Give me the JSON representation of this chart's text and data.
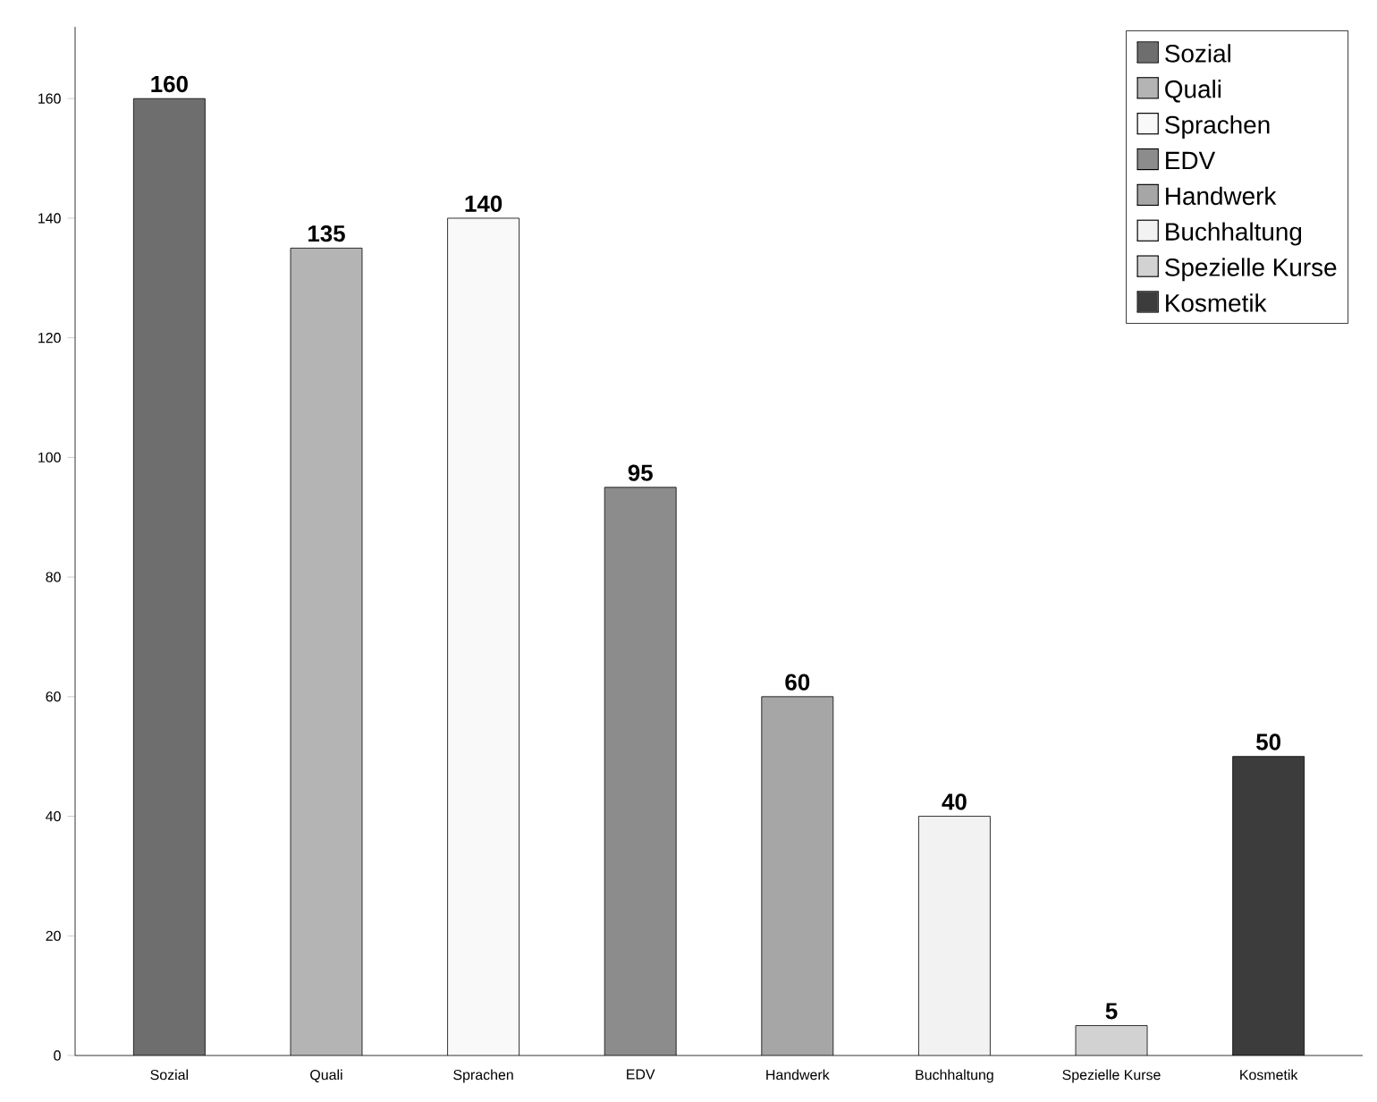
{
  "chart_data": {
    "type": "bar",
    "categories": [
      "Sozial",
      "Quali",
      "Sprachen",
      "EDV",
      "Handwerk",
      "Buchhaltung",
      "Spezielle Kurse",
      "Kosmetik"
    ],
    "series": [
      {
        "name": "Sozial",
        "color": "#6e6e6e",
        "values": [
          160,
          null,
          null,
          null,
          null,
          null,
          null,
          null
        ]
      },
      {
        "name": "Quali",
        "color": "#b4b4b4",
        "values": [
          null,
          135,
          null,
          null,
          null,
          null,
          null,
          null
        ]
      },
      {
        "name": "Sprachen",
        "color": "#f9f9f9",
        "values": [
          null,
          null,
          140,
          null,
          null,
          null,
          null,
          null
        ]
      },
      {
        "name": "EDV",
        "color": "#8c8c8c",
        "values": [
          null,
          null,
          null,
          95,
          null,
          null,
          null,
          null
        ]
      },
      {
        "name": "Handwerk",
        "color": "#a6a6a6",
        "values": [
          null,
          null,
          null,
          null,
          60,
          null,
          null,
          null
        ]
      },
      {
        "name": "Buchhaltung",
        "color": "#f2f2f2",
        "values": [
          null,
          null,
          null,
          null,
          null,
          40,
          null,
          null
        ]
      },
      {
        "name": "Spezielle Kurse",
        "color": "#d2d2d2",
        "values": [
          null,
          null,
          null,
          null,
          null,
          null,
          5,
          null
        ]
      },
      {
        "name": "Kosmetik",
        "color": "#3c3c3c",
        "values": [
          null,
          null,
          null,
          null,
          null,
          null,
          null,
          50
        ]
      }
    ],
    "ylim": [
      0,
      172
    ],
    "yticks": [
      0,
      20,
      40,
      60,
      80,
      100,
      120,
      140,
      160
    ],
    "data_labels": true,
    "legend": "top right"
  }
}
